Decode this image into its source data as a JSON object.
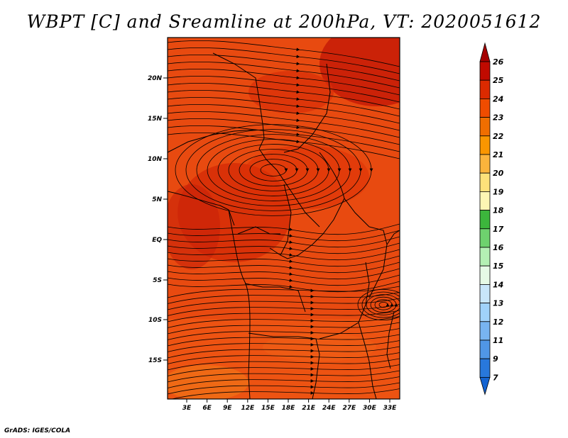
{
  "title": "WBPT [C] and Sreamline at 200hPa, VT: 2020051612",
  "footer": "GrADS: IGES/COLA",
  "map": {
    "lat_ticks": [
      "20N",
      "15N",
      "10N",
      "5N",
      "EQ",
      "5S",
      "10S",
      "15S"
    ],
    "lon_ticks": [
      "3E",
      "6E",
      "9E",
      "12E",
      "15E",
      "18E",
      "21E",
      "24E",
      "27E",
      "30E",
      "33E"
    ],
    "field_base_color": "#e84a10",
    "border_color": "#000000",
    "streamline_color": "#000000"
  },
  "colorbar": {
    "levels": [
      {
        "label": "26",
        "color": "#a50000"
      },
      {
        "label": "25",
        "color": "#c00a00"
      },
      {
        "label": "24",
        "color": "#dc2a00"
      },
      {
        "label": "23",
        "color": "#f04c00"
      },
      {
        "label": "22",
        "color": "#f06e00"
      },
      {
        "label": "21",
        "color": "#fa9600"
      },
      {
        "label": "20",
        "color": "#fbb43c"
      },
      {
        "label": "19",
        "color": "#fde17a"
      },
      {
        "label": "18",
        "color": "#fdf6b4"
      },
      {
        "label": "17",
        "color": "#3cb63c"
      },
      {
        "label": "16",
        "color": "#6ed26e"
      },
      {
        "label": "15",
        "color": "#b4f0b4"
      },
      {
        "label": "14",
        "color": "#e6fae6"
      },
      {
        "label": "13",
        "color": "#c8e6fa"
      },
      {
        "label": "12",
        "color": "#a0d2fa"
      },
      {
        "label": "11",
        "color": "#78b4f0"
      },
      {
        "label": "9",
        "color": "#5096e6"
      },
      {
        "label": "7",
        "color": "#2878dc"
      }
    ],
    "bottom_color": "#1464d2"
  }
}
